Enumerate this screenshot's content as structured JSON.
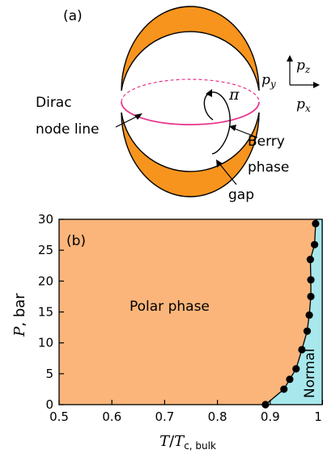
{
  "panel_a": {
    "label": "(a)",
    "dirac_label_line1": "Dirac",
    "dirac_label_line2": "node line",
    "berry_label_line1": "Berry",
    "berry_label_line2": "phase",
    "gap_label": "gap",
    "pi_symbol": "π",
    "axis_pz": "p",
    "axis_pz_sub": "z",
    "axis_py": "p",
    "axis_py_sub": "y",
    "axis_px": "p",
    "axis_px_sub": "x",
    "colors": {
      "gap_fill": "#f7941d",
      "node_line": "#e8338a"
    }
  },
  "chart_data": {
    "type": "scatter",
    "panel_label": "(b)",
    "region_left_label": "Polar phase",
    "region_right_label": "Normal",
    "xlabel_main": "T",
    "xlabel_div": "/",
    "xlabel_T": "T",
    "xlabel_sub": "c, bulk",
    "ylabel_main": "P",
    "ylabel_unit": ", bar",
    "xlim": [
      0.5,
      1.0
    ],
    "ylim": [
      0,
      30
    ],
    "xticks": [
      0.5,
      0.6,
      0.7,
      0.8,
      0.9,
      1.0
    ],
    "xtick_labels": [
      "0.5",
      "0.6",
      "0.7",
      "0.8",
      "0.9",
      "1"
    ],
    "yticks": [
      0,
      5,
      10,
      15,
      20,
      25,
      30
    ],
    "ytick_labels": [
      "0",
      "5",
      "10",
      "15",
      "20",
      "25",
      "30"
    ],
    "points": [
      {
        "x": 0.891,
        "y": 0
      },
      {
        "x": 0.926,
        "y": 2.5
      },
      {
        "x": 0.937,
        "y": 4.1
      },
      {
        "x": 0.949,
        "y": 5.8
      },
      {
        "x": 0.96,
        "y": 8.9
      },
      {
        "x": 0.97,
        "y": 11.9
      },
      {
        "x": 0.974,
        "y": 14.5
      },
      {
        "x": 0.977,
        "y": 17.5
      },
      {
        "x": 0.977,
        "y": 20.2
      },
      {
        "x": 0.976,
        "y": 23.5
      },
      {
        "x": 0.984,
        "y": 25.9
      },
      {
        "x": 0.986,
        "y": 29.3
      }
    ],
    "colors": {
      "polar": "#fbb57a",
      "normal": "#a8e8ec",
      "point": "#000000"
    }
  }
}
